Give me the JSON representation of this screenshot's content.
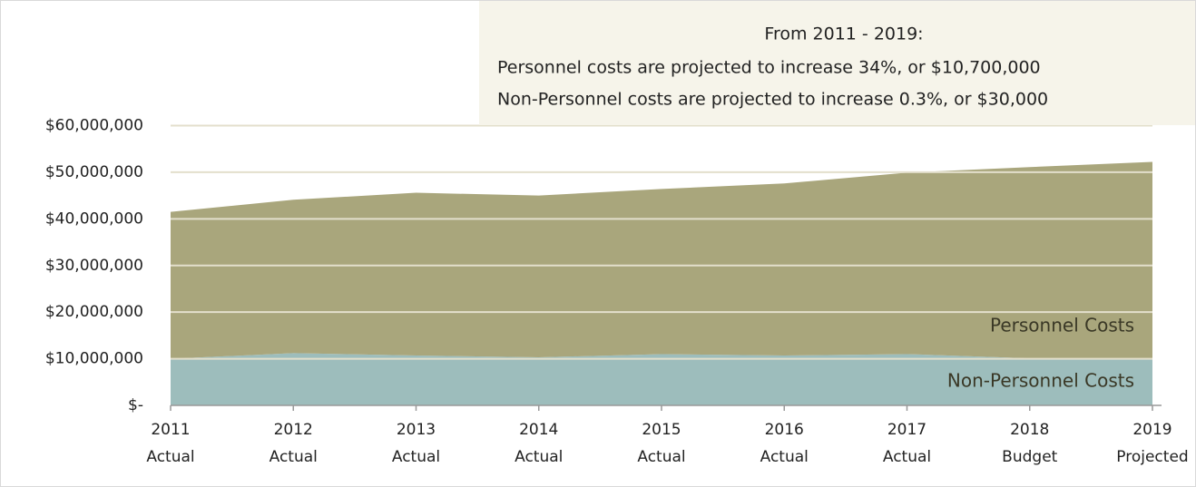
{
  "chart_data": {
    "type": "stacked_area",
    "annotation": [
      "From 2011 - 2019:",
      "Personnel costs are projected to increase 34%, or $10,700,000",
      "Non-Personnel costs are projected to increase 0.3%, or $30,000"
    ],
    "categories": [
      "2011",
      "2012",
      "2013",
      "2014",
      "2015",
      "2016",
      "2017",
      "2018",
      "2019"
    ],
    "category_sublabels": [
      "Actual",
      "Actual",
      "Actual",
      "Actual",
      "Actual",
      "Actual",
      "Actual",
      "Budget",
      "Projected"
    ],
    "series": [
      {
        "name": "Non-Personnel Costs",
        "color": "#9dbdbc",
        "values": [
          10000000,
          11200000,
          10700000,
          10300000,
          11000000,
          10700000,
          11000000,
          10100000,
          10030000
        ]
      },
      {
        "name": "Personnel Costs",
        "color": "#a9a67c",
        "values": [
          31500000,
          32900000,
          34900000,
          34700000,
          35400000,
          36900000,
          38900000,
          41000000,
          42200000
        ]
      }
    ],
    "ylim": [
      0,
      60000000
    ],
    "yticks": [
      {
        "value": 0,
        "label": "$-"
      },
      {
        "value": 10000000,
        "label": "$10,000,000"
      },
      {
        "value": 20000000,
        "label": "$20,000,000"
      },
      {
        "value": 30000000,
        "label": "$30,000,000"
      },
      {
        "value": 40000000,
        "label": "$40,000,000"
      },
      {
        "value": 50000000,
        "label": "$50,000,000"
      },
      {
        "value": 60000000,
        "label": "$60,000,000"
      }
    ],
    "grid": true
  }
}
